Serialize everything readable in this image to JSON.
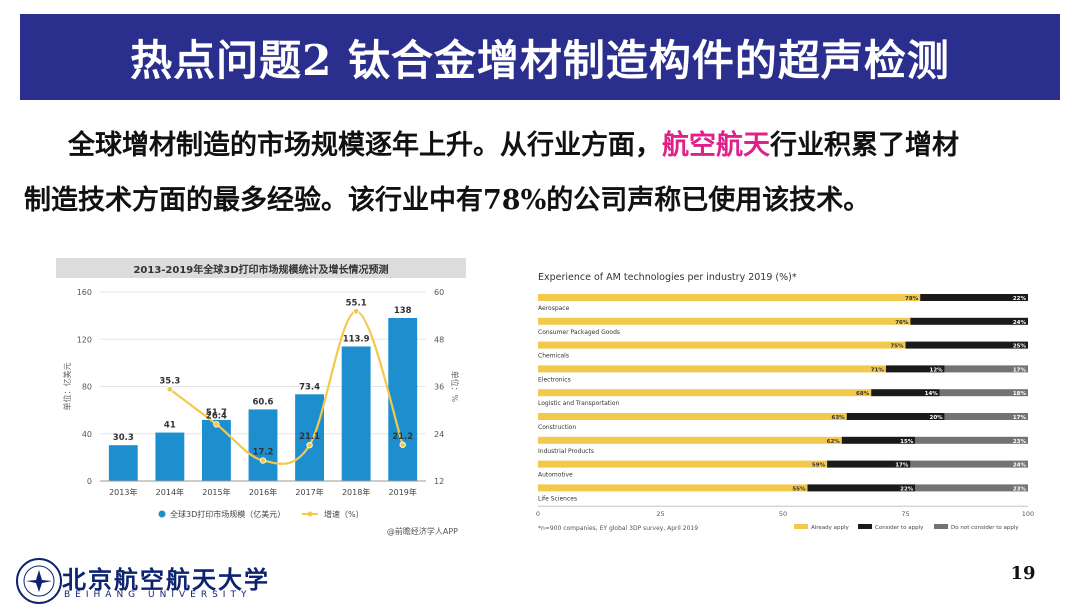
{
  "slide": {
    "title": "热点问题2 钛合金增材制造构件的超声检测",
    "para_line1_a": "全球增材制造的市场规模逐年上升。从行业方面，",
    "para_highlight": "航空航天",
    "para_line1_b": "行业积累了增材",
    "para_line2": "制造技术方面的最多经验。该行业中有78%的公司声称已使用该技术。",
    "page_number": "19",
    "university_cn": "北京航空航天大学",
    "university_en": "BEIHANG UNIVERSITY",
    "colors": {
      "title_bg": "#2a2e8d",
      "highlight": "#e0218a",
      "bar_blue": "#1d8fcf",
      "line_gold": "#f2c94c"
    }
  },
  "chart_data": [
    {
      "type": "bar",
      "title": "2013-2019年全球3D打印市场规模统计及增长情况预测",
      "categories": [
        "2013年",
        "2014年",
        "2015年",
        "2016年",
        "2017年",
        "2018年",
        "2019年"
      ],
      "ylabel": "单位：亿美元",
      "y2label": "单位：%",
      "ylim": [
        0,
        160
      ],
      "yticks": [
        "0",
        "40",
        "80",
        "120",
        "160"
      ],
      "y2lim": [
        12,
        60
      ],
      "y2ticks": [
        "12",
        "24",
        "36",
        "48",
        "60"
      ],
      "series": [
        {
          "name": "全球3D打印市场规模（亿美元）",
          "type": "bar",
          "values": [
            30.3,
            41,
            51.7,
            60.6,
            73.4,
            113.9,
            138
          ]
        },
        {
          "name": "增速（%）",
          "type": "line",
          "values": [
            null,
            35.3,
            26.4,
            17.2,
            21.1,
            55.1,
            21.2
          ]
        }
      ],
      "source": "@前瞻经济学人APP",
      "grid": true,
      "legend": "bottom"
    },
    {
      "type": "bar",
      "stacked": true,
      "orientation": "horizontal",
      "title": "Experience of AM technologies per industry 2019 (%)*",
      "categories": [
        "Aerospace",
        "Consumer Packaged Goods",
        "Chemicals",
        "Electronics",
        "Logistic and Transportation",
        "Construction",
        "Industrial Products",
        "Automotive",
        "Life Sciences"
      ],
      "xlim": [
        0,
        100
      ],
      "xticks": [
        "0",
        "25",
        "50",
        "75",
        "100"
      ],
      "series": [
        {
          "name": "Already apply",
          "values": [
            78,
            76,
            75,
            71,
            68,
            63,
            62,
            59,
            55
          ]
        },
        {
          "name": "Consider to apply",
          "values": [
            22,
            24,
            25,
            12,
            14,
            20,
            15,
            17,
            22
          ]
        },
        {
          "name": "Do not consider to apply",
          "values": [
            0,
            0,
            0,
            17,
            18,
            17,
            23,
            24,
            23
          ]
        }
      ],
      "footnote": "*n=900 companies, EY global 3DP survey, April 2019",
      "legend": "bottom"
    }
  ]
}
